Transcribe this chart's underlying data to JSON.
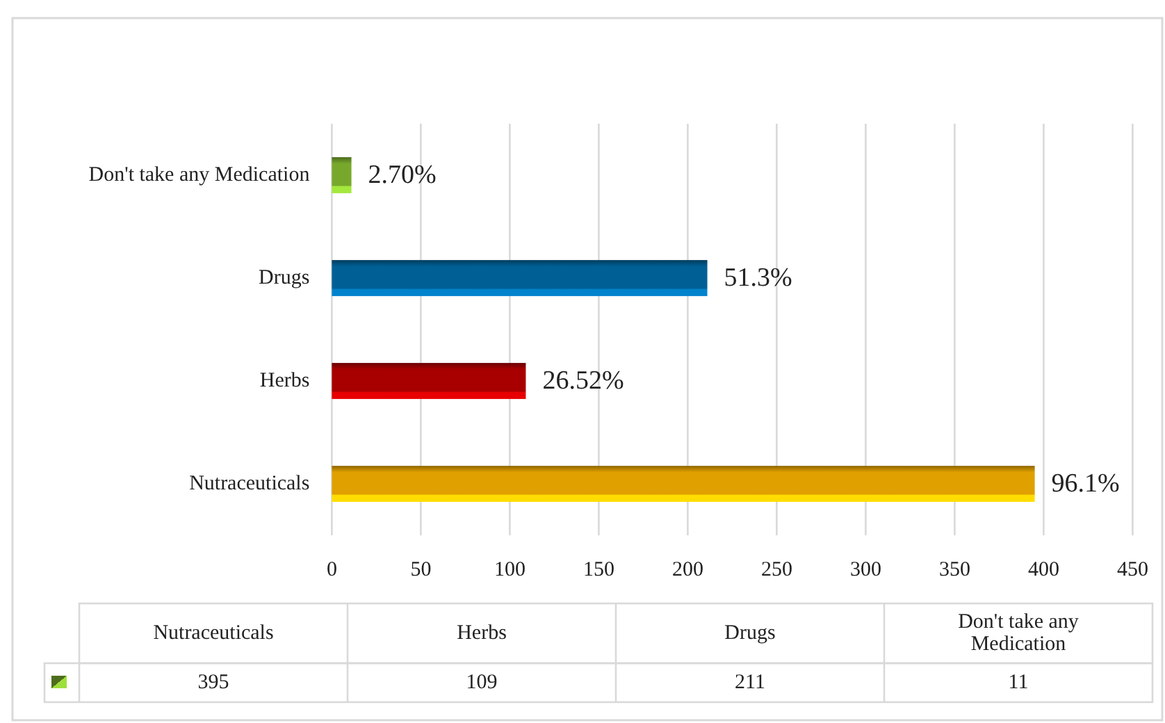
{
  "chart_data": [
    {
      "type": "bar",
      "orientation": "horizontal",
      "categories": [
        "Don't take any Medication",
        "Drugs",
        "Herbs",
        "Nutraceuticals"
      ],
      "values": [
        11,
        211,
        109,
        395
      ],
      "colors": [
        "#77a82c",
        "#005f94",
        "#a80000",
        "#e0a000"
      ],
      "annotations": [
        {
          "text": "2.70%",
          "x": 11,
          "y": "Don't take any Medication"
        },
        {
          "text": "51.3%",
          "x": 211,
          "y": "Drugs"
        },
        {
          "text": "26.52%",
          "x": 109,
          "y": "Herbs"
        },
        {
          "text": "96.1%",
          "x": 395,
          "y": "Nutraceuticals"
        }
      ],
      "xlim": [
        0,
        450
      ],
      "xticks": [
        0,
        50,
        100,
        150,
        200,
        250,
        300,
        350,
        400,
        450
      ],
      "grid": "x"
    },
    {
      "type": "other",
      "categories": [
        "Nutraceuticals",
        "Herbs",
        "Drugs",
        "Don't take any Medication"
      ],
      "values": [
        395,
        109,
        211,
        11
      ],
      "color": "#77a82c",
      "data_labels": true
    }
  ]
}
